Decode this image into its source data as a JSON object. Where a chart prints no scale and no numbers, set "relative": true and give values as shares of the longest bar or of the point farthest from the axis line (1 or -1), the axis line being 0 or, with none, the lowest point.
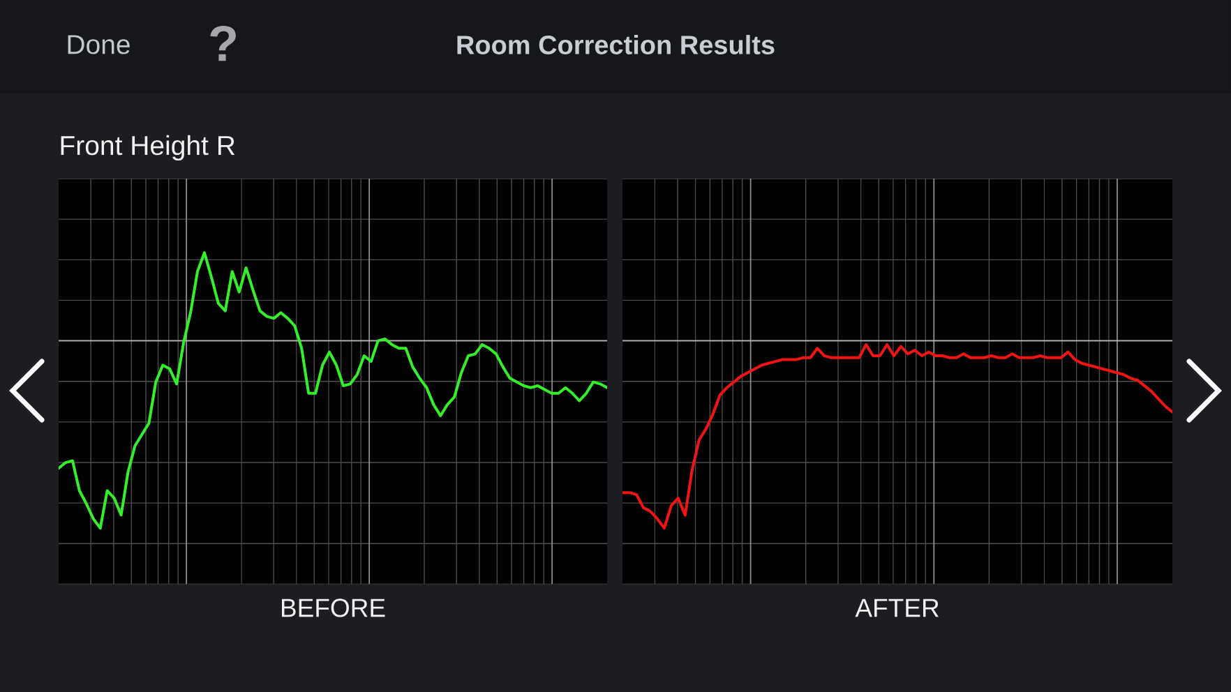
{
  "chart_data": [
    {
      "type": "line",
      "title": "Room Correction Results",
      "subtitle": "Front Height R",
      "annotations": [
        "Done",
        "?"
      ],
      "xlabel": "BEFORE",
      "relative": true,
      "grid": true,
      "categories": [
        null,
        null,
        null,
        null,
        null,
        null,
        null,
        null,
        null,
        null,
        null,
        null,
        null,
        null,
        null,
        null,
        null,
        null,
        null,
        null,
        null,
        null,
        null,
        null,
        null,
        null,
        null,
        null,
        null,
        null,
        null,
        null,
        null,
        null,
        null,
        null,
        null,
        null,
        null,
        null,
        null,
        null,
        null,
        null,
        null,
        null,
        null,
        null,
        null,
        null,
        null,
        null,
        null,
        null,
        null,
        null,
        null,
        null,
        null,
        null,
        null,
        null,
        null,
        null,
        null,
        null,
        null,
        null,
        null,
        null,
        null,
        null,
        null,
        null,
        null,
        null,
        null,
        null,
        null,
        null
      ],
      "series": [
        {
          "color": "#33f02a",
          "values": [
            -0.68,
            -0.65,
            -0.64,
            -0.8,
            -0.87,
            -0.95,
            -1.0,
            -0.8,
            -0.84,
            -0.93,
            -0.7,
            -0.56,
            -0.5,
            -0.44,
            -0.22,
            -0.13,
            -0.15,
            -0.23,
            -0.01,
            0.15,
            0.37,
            0.47,
            0.34,
            0.2,
            0.16,
            0.37,
            0.26,
            0.39,
            0.27,
            0.16,
            0.13,
            0.12,
            0.15,
            0.12,
            0.08,
            -0.04,
            -0.28,
            -0.28,
            -0.13,
            -0.06,
            -0.13,
            -0.24,
            -0.23,
            -0.18,
            -0.08,
            -0.11,
            0.0,
            0.01,
            -0.02,
            -0.04,
            -0.04,
            -0.14,
            -0.2,
            -0.25,
            -0.34,
            -0.4,
            -0.34,
            -0.3,
            -0.17,
            -0.08,
            -0.07,
            -0.02,
            -0.04,
            -0.07,
            -0.14,
            -0.2,
            -0.22,
            -0.24,
            -0.25,
            -0.24,
            -0.26,
            -0.28,
            -0.28,
            -0.25,
            -0.28,
            -0.32,
            -0.28,
            -0.22,
            -0.23,
            -0.25
          ]
        }
      ],
      "ref_lines": [
        {
          "axis": "y",
          "value": 0,
          "color": "#b4b4b4"
        }
      ]
    },
    {
      "type": "line",
      "xlabel": "AFTER",
      "relative": true,
      "grid": true,
      "categories": [
        null,
        null,
        null,
        null,
        null,
        null,
        null,
        null,
        null,
        null,
        null,
        null,
        null,
        null,
        null,
        null,
        null,
        null,
        null,
        null,
        null,
        null,
        null,
        null,
        null,
        null,
        null,
        null,
        null,
        null,
        null,
        null,
        null,
        null,
        null,
        null,
        null,
        null,
        null,
        null,
        null,
        null,
        null,
        null,
        null,
        null,
        null,
        null,
        null,
        null,
        null,
        null,
        null,
        null,
        null,
        null,
        null,
        null,
        null,
        null,
        null,
        null,
        null,
        null,
        null,
        null,
        null,
        null,
        null,
        null,
        null,
        null,
        null,
        null,
        null,
        null,
        null,
        null,
        null,
        null
      ],
      "series": [
        {
          "color": "#f01414",
          "values": [
            -0.81,
            -0.81,
            -0.82,
            -0.89,
            -0.91,
            -0.95,
            -1.0,
            -0.88,
            -0.84,
            -0.93,
            -0.69,
            -0.53,
            -0.47,
            -0.39,
            -0.29,
            -0.25,
            -0.22,
            -0.19,
            -0.17,
            -0.15,
            -0.13,
            -0.12,
            -0.11,
            -0.1,
            -0.1,
            -0.1,
            -0.09,
            -0.09,
            -0.04,
            -0.08,
            -0.09,
            -0.09,
            -0.09,
            -0.09,
            -0.09,
            -0.02,
            -0.08,
            -0.08,
            -0.02,
            -0.08,
            -0.03,
            -0.07,
            -0.05,
            -0.08,
            -0.06,
            -0.08,
            -0.08,
            -0.09,
            -0.09,
            -0.07,
            -0.09,
            -0.09,
            -0.09,
            -0.08,
            -0.09,
            -0.09,
            -0.07,
            -0.09,
            -0.09,
            -0.09,
            -0.08,
            -0.09,
            -0.09,
            -0.09,
            -0.06,
            -0.1,
            -0.12,
            -0.13,
            -0.14,
            -0.15,
            -0.16,
            -0.17,
            -0.18,
            -0.2,
            -0.21,
            -0.24,
            -0.27,
            -0.31,
            -0.35,
            -0.38
          ]
        }
      ],
      "ref_lines": [
        {
          "axis": "y",
          "value": 0,
          "color": "#b4b4b4"
        }
      ]
    }
  ]
}
